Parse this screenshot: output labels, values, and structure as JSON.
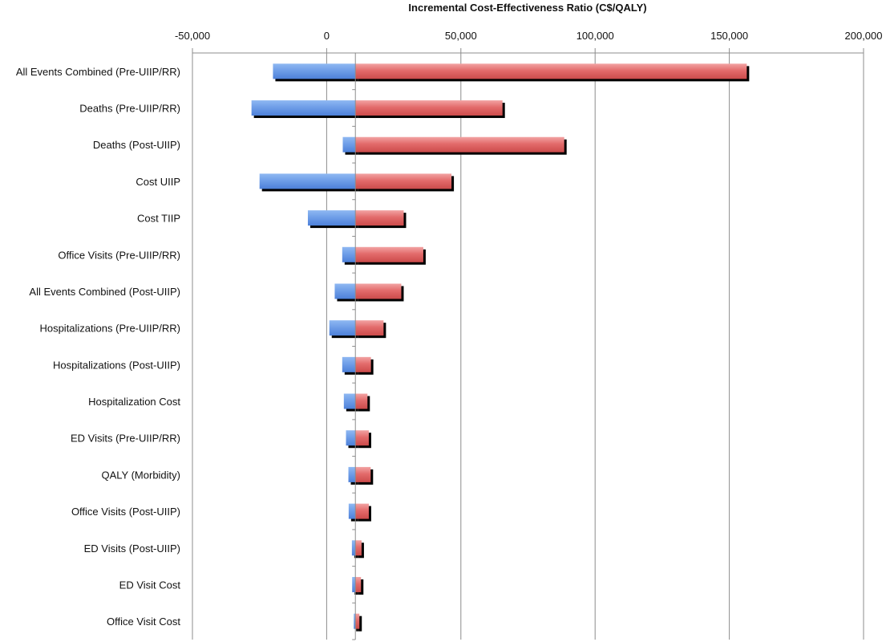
{
  "chart_data": {
    "type": "bar",
    "orientation": "horizontal",
    "subtype": "tornado",
    "title": "Incremental Cost-Effectiveness Ratio (C$/QALY)",
    "xlabel": "Incremental Cost-Effectiveness Ratio (C$/QALY)",
    "ylabel": "",
    "xlim": [
      -50000,
      200000
    ],
    "xticks": [
      -50000,
      0,
      50000,
      100000,
      150000,
      200000
    ],
    "xtick_labels": [
      "-50,000",
      "0",
      "50,000",
      "100,000",
      "150,000",
      "200,000"
    ],
    "base_value": 10700,
    "grid": true,
    "legend": "none",
    "categories": [
      "All Events Combined (Pre-UIIP/RR)",
      "Deaths (Pre-UIIP/RR)",
      "Deaths (Post-UIIP)",
      "Cost UIIP",
      "Cost TIIP",
      "Office Visits (Pre-UIIP/RR)",
      "All Events Combined (Post-UIIP)",
      "Hospitalizations (Pre-UIIP/RR)",
      "Hospitalizations (Post-UIIP)",
      "Hospitalization Cost",
      "ED Visits (Pre-UIIP/RR)",
      "QALY (Morbidity)",
      "Office Visits (Post-UIIP)",
      "ED Visits (Post-UIIP)",
      "ED Visit Cost",
      "Office Visit Cost"
    ],
    "series": [
      {
        "color": "#6f9ee8",
        "values": [
          -20000,
          -28000,
          6000,
          -25000,
          -7000,
          5800,
          3000,
          1000,
          5800,
          6400,
          7200,
          8100,
          8200,
          9400,
          9500,
          10100
        ]
      },
      {
        "color": "#e36b6b",
        "values": [
          156500,
          65500,
          88500,
          46500,
          28700,
          36000,
          27800,
          21200,
          16500,
          15200,
          15700,
          16400,
          15700,
          13000,
          12800,
          12200
        ]
      }
    ]
  }
}
